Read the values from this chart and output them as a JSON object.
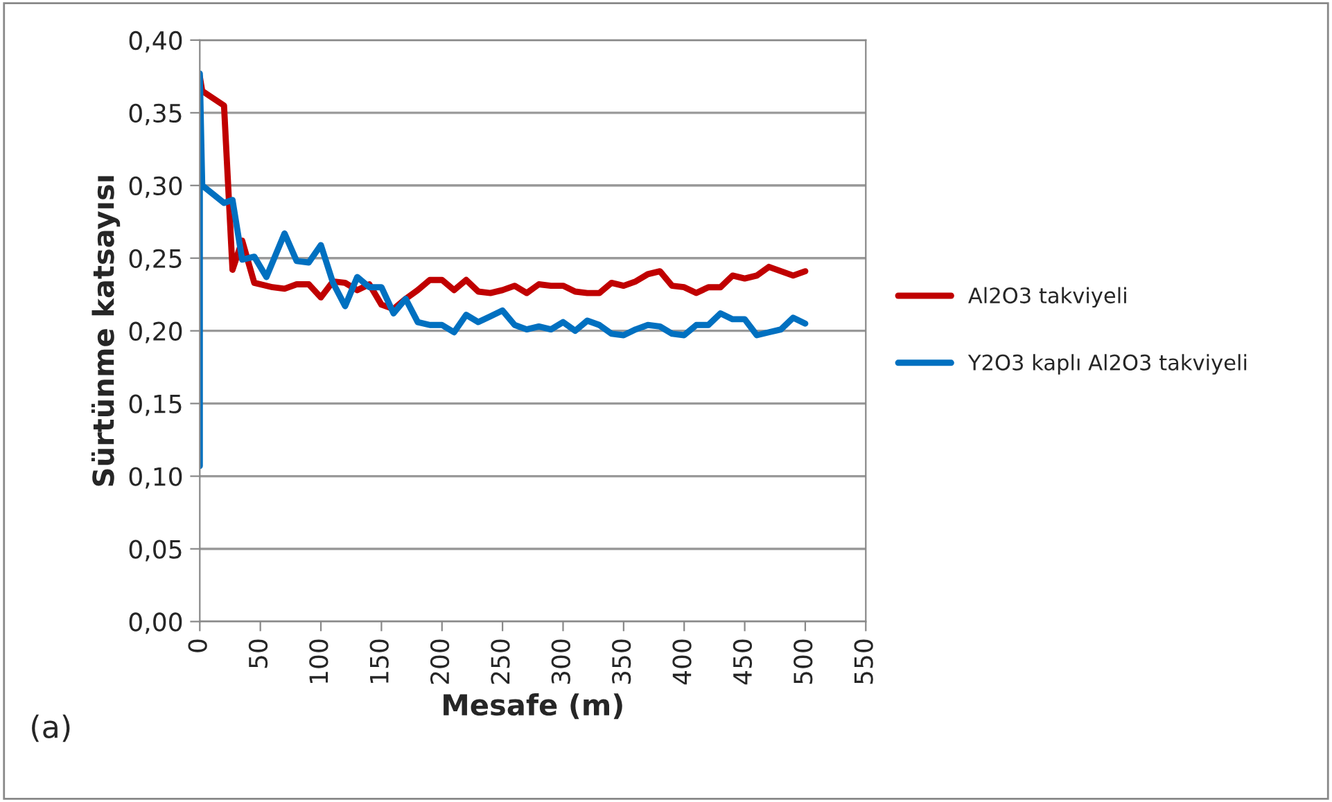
{
  "chart_data": {
    "type": "line",
    "xlabel": "Mesafe (m)",
    "ylabel": "Sürtünme katsayısı",
    "annotations": [
      "(a)"
    ],
    "xlim": [
      0,
      550
    ],
    "xticks": [
      0,
      50,
      100,
      150,
      200,
      250,
      300,
      350,
      400,
      450,
      500,
      550
    ],
    "ylim": [
      0,
      0.4
    ],
    "yticks": [
      {
        "value": 0,
        "label": "0,00"
      },
      {
        "value": 0.05,
        "label": "0,05"
      },
      {
        "value": 0.1,
        "label": "0,10"
      },
      {
        "value": 0.15,
        "label": "0,15"
      },
      {
        "value": 0.2,
        "label": "0,20"
      },
      {
        "value": 0.25,
        "label": "0,25"
      },
      {
        "value": 0.3,
        "label": "0,30"
      },
      {
        "value": 0.35,
        "label": "0,35"
      },
      {
        "value": 0.4,
        "label": "0,40"
      }
    ],
    "grid": "y",
    "legend": "right",
    "marker": "none",
    "line_style": "solid",
    "series": [
      {
        "name": "Al2O3 takviyeli",
        "color": "#c00000",
        "x": [
          0,
          2,
          20,
          27,
          35,
          45,
          60,
          70,
          80,
          90,
          100,
          110,
          120,
          130,
          140,
          150,
          160,
          170,
          180,
          190,
          200,
          210,
          220,
          230,
          240,
          250,
          260,
          270,
          280,
          290,
          300,
          310,
          320,
          330,
          340,
          350,
          360,
          370,
          380,
          390,
          400,
          410,
          420,
          430,
          440,
          450,
          460,
          470,
          480,
          490,
          500
        ],
        "values": [
          0.375,
          0.365,
          0.355,
          0.242,
          0.262,
          0.233,
          0.23,
          0.229,
          0.232,
          0.232,
          0.223,
          0.234,
          0.233,
          0.228,
          0.232,
          0.218,
          0.215,
          0.222,
          0.228,
          0.235,
          0.235,
          0.228,
          0.235,
          0.227,
          0.226,
          0.228,
          0.231,
          0.226,
          0.232,
          0.231,
          0.231,
          0.227,
          0.226,
          0.226,
          0.233,
          0.231,
          0.234,
          0.239,
          0.241,
          0.231,
          0.23,
          0.226,
          0.23,
          0.23,
          0.238,
          0.236,
          0.238,
          0.244,
          0.241,
          0.238,
          0.241
        ]
      },
      {
        "name": "Y2O3 kaplı Al2O3 takviyeli",
        "color": "#0070c0",
        "x": [
          0,
          0,
          2,
          20,
          27,
          35,
          45,
          55,
          70,
          80,
          90,
          100,
          110,
          120,
          130,
          140,
          150,
          160,
          170,
          180,
          190,
          200,
          210,
          220,
          230,
          240,
          250,
          260,
          270,
          280,
          290,
          300,
          310,
          320,
          330,
          340,
          350,
          360,
          370,
          380,
          390,
          400,
          410,
          420,
          430,
          440,
          450,
          460,
          470,
          480,
          490,
          500
        ],
        "values": [
          0.107,
          0.377,
          0.3,
          0.288,
          0.29,
          0.249,
          0.251,
          0.237,
          0.267,
          0.248,
          0.247,
          0.259,
          0.233,
          0.217,
          0.237,
          0.23,
          0.23,
          0.212,
          0.222,
          0.206,
          0.204,
          0.204,
          0.199,
          0.211,
          0.206,
          0.21,
          0.214,
          0.204,
          0.201,
          0.203,
          0.201,
          0.206,
          0.2,
          0.207,
          0.204,
          0.198,
          0.197,
          0.201,
          0.204,
          0.203,
          0.198,
          0.197,
          0.204,
          0.204,
          0.212,
          0.208,
          0.208,
          0.197,
          0.199,
          0.201,
          0.209,
          0.205
        ]
      }
    ]
  }
}
